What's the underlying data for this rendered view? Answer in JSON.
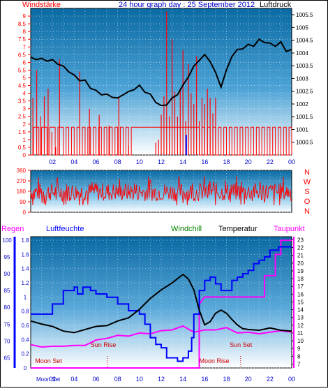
{
  "chart_data": [
    {
      "type": "line",
      "title": "24 hour graph day : 25 September 2012",
      "left_label": "Windstärke",
      "right_label": "Luftdruck",
      "left_ticks": [
        "0",
        "0.5",
        "1",
        "1.5",
        "2",
        "2.5",
        "3",
        "3.5",
        "4",
        "4.5",
        "5",
        "5.5",
        "6",
        "6.5",
        "7",
        "7.5",
        "8",
        "8.5",
        "9"
      ],
      "right_ticks": [
        "1000.5",
        "1001",
        "1001.5",
        "1002",
        "1002.5",
        "1003",
        "1003.5",
        "1004",
        "1004.5",
        "1005",
        "1005.5"
      ],
      "x_ticks": [
        "02",
        "04",
        "06",
        "08",
        "10",
        "12",
        "14",
        "16",
        "18",
        "20",
        "22",
        "00"
      ],
      "ylim_left": [
        0,
        9.5
      ],
      "ylim_right": [
        1000,
        1005.75
      ],
      "grid": true,
      "series": [
        {
          "name": "Luftdruck",
          "color": "#000000",
          "x": [
            0,
            0.5,
            1,
            1.5,
            2,
            2.5,
            3,
            3.5,
            4,
            4.5,
            5,
            5.5,
            6,
            6.5,
            7,
            7.5,
            8,
            8.5,
            9,
            9.5,
            10,
            10.5,
            11,
            11.5,
            12,
            12.5,
            13,
            13.5,
            14,
            14.5,
            15,
            15.5,
            16,
            16.5,
            17,
            17.5,
            18,
            18.5,
            19,
            19.5,
            20,
            20.5,
            21,
            21.5,
            22,
            22.5,
            23,
            23.5,
            24
          ],
          "y": [
            1003.8,
            1003.78,
            1003.75,
            1003.72,
            1003.7,
            1003.6,
            1003.45,
            1003.3,
            1003.1,
            1002.95,
            1002.9,
            1002.65,
            1002.5,
            1002.4,
            1002.35,
            1002.3,
            1002.2,
            1002.4,
            1002.45,
            1002.6,
            1002.7,
            1002.5,
            1002.35,
            1002.1,
            1001.9,
            1002.0,
            1002.2,
            1002.4,
            1002.7,
            1003.1,
            1003.45,
            1003.75,
            1003.9,
            1003.7,
            1003.2,
            1002.7,
            1003.3,
            1003.9,
            1004.1,
            1004.2,
            1004.3,
            1004.3,
            1004.5,
            1004.45,
            1004.35,
            1004.3,
            1004.4,
            1004.1,
            1004.1
          ]
        },
        {
          "name": "Windstärke",
          "color": "#ff0000",
          "spikes": [
            3.7,
            5.5,
            2.5,
            3.8,
            4.3,
            1.5,
            0.5,
            6.2,
            5.4,
            3.0,
            2.6,
            1.9,
            3.7,
            0.6,
            0.8,
            1.0,
            2.6,
            3.8,
            9.3,
            2.5,
            7.5,
            4.1,
            2.5,
            4.3,
            6.8,
            2.2,
            5.9,
            4.0,
            3.3,
            6.4,
            2.2,
            3.7,
            3.3,
            4.3,
            3.7,
            2.7,
            3.7
          ]
        },
        {
          "name": "Windrichtung Ausreißer",
          "color": "#0000ff",
          "x": [
            14.3
          ],
          "y": [
            1.3
          ]
        }
      ]
    },
    {
      "type": "line",
      "left_ticks": [
        "0",
        "90",
        "180",
        "270",
        "360"
      ],
      "right_label_letters": [
        "N",
        "W",
        "S",
        "O",
        "N"
      ],
      "ylim": [
        0,
        360
      ],
      "series": [
        {
          "name": "Windrichtung",
          "color": "#ff0000",
          "band": [
            60,
            350
          ],
          "center": 175
        }
      ]
    },
    {
      "type": "line",
      "legend": [
        "Regen",
        "Luftfeuchte",
        "Windchill",
        "Temperatur",
        "Taupunkt"
      ],
      "legend_colors": [
        "#ff00ff",
        "#0000ff",
        "#008000",
        "#000000",
        "#ff00ff"
      ],
      "rain_ticks": [
        "0",
        "0.2",
        "0.4",
        "0.6",
        "0.8",
        "1",
        "1.2",
        "1.4",
        "1.6",
        "1.8"
      ],
      "humidity_ticks": [
        "65",
        "70",
        "75",
        "80",
        "85",
        "90",
        "95",
        "100"
      ],
      "temp_ticks": [
        "7",
        "8",
        "9",
        "10",
        "11",
        "12",
        "13",
        "14",
        "15",
        "16",
        "17",
        "18",
        "19",
        "20",
        "21",
        "22",
        "23"
      ],
      "x_ticks": [
        "02",
        "04",
        "06",
        "08",
        "10",
        "12",
        "14",
        "16",
        "18",
        "20",
        "22",
        "00"
      ],
      "x_first_label": "Moon Set",
      "annotations": [
        "Moon Set",
        "Sun Rise",
        "Moon Rise",
        "Sun Set"
      ],
      "series": [
        {
          "name": "Temperatur",
          "color": "#000000",
          "x": [
            0,
            1,
            2,
            3,
            4,
            5,
            6,
            7,
            8,
            9,
            10,
            11,
            12,
            13,
            14,
            14.5,
            15,
            15.5,
            16,
            16.5,
            17,
            17.5,
            18,
            18.5,
            19,
            19.5,
            20,
            21,
            22,
            23,
            24
          ],
          "y": [
            12.5,
            12.2,
            11.8,
            11.3,
            11.0,
            11.5,
            11.8,
            12.0,
            12.5,
            13.0,
            14.0,
            15.5,
            16.5,
            17.5,
            18.5,
            18.0,
            16.5,
            14.0,
            12.0,
            12.5,
            13.5,
            14.0,
            13.5,
            12.8,
            12.0,
            11.6,
            11.4,
            11.4,
            11.6,
            11.4,
            11.2
          ]
        },
        {
          "name": "Luftfeuchte",
          "color": "#0000ff",
          "x": [
            0,
            1,
            2,
            3,
            3.5,
            4,
            4.3,
            4.8,
            5.5,
            6,
            7,
            8,
            9,
            10,
            10.5,
            11,
            11.5,
            12,
            12.5,
            13,
            13.5,
            14,
            14.5,
            14.8,
            15,
            15.5,
            16,
            16.5,
            17,
            17.5,
            18,
            18.5,
            19,
            19.5,
            20,
            20.5,
            21,
            21.5,
            22,
            22.3,
            22.8,
            23,
            23.5,
            24
          ],
          "y": [
            78,
            78,
            81,
            85,
            85,
            86,
            84,
            86,
            85,
            84,
            83,
            81,
            79,
            78,
            75,
            71,
            69,
            68,
            65,
            65,
            64,
            65,
            67,
            71,
            78,
            85,
            88,
            89,
            87,
            85,
            85,
            88,
            89,
            90,
            91,
            93,
            94,
            95,
            97,
            97,
            98,
            98,
            98,
            98
          ]
        },
        {
          "name": "Taupunkt",
          "color": "#ff00ff",
          "x": [
            0,
            1,
            2,
            3,
            4,
            5,
            6,
            7,
            8,
            9,
            10,
            11,
            12,
            13,
            14,
            15,
            16,
            17,
            18,
            19,
            20,
            21,
            22,
            23,
            24
          ],
          "y": [
            9.4,
            9.3,
            9.2,
            9.4,
            9.3,
            9.5,
            10.0,
            10.4,
            10.6,
            10.7,
            10.9,
            11.0,
            11.2,
            11.5,
            11.8,
            11.2,
            11.3,
            11.5,
            11.6,
            11.1,
            11.0,
            11.0,
            11.0,
            11.4,
            11.0
          ]
        },
        {
          "name": "Regen",
          "color": "#ff00ff",
          "x": [
            0,
            15.5,
            15.5,
            16,
            20.5,
            21.5,
            21.5,
            22.5,
            22.5,
            23,
            23,
            24
          ],
          "y": [
            0,
            0,
            0.9,
            1.0,
            1.0,
            1.0,
            1.3,
            1.3,
            1.6,
            1.6,
            1.8,
            1.8
          ]
        }
      ]
    }
  ]
}
